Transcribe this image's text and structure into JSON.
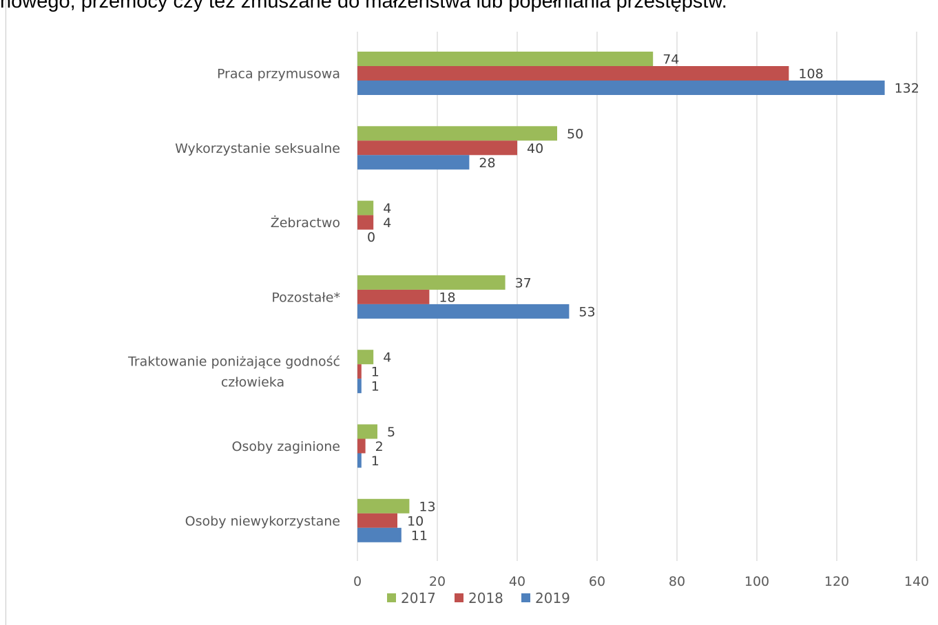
{
  "heading_fragment": "nowego, przemocy czy też zmuszane do małżeństwa lub popełniania przestępstw.",
  "chart_data": {
    "type": "bar",
    "orientation": "horizontal",
    "categories": [
      [
        "Praca przymusowa"
      ],
      [
        "Wykorzystanie seksualne"
      ],
      [
        "Żebractwo"
      ],
      [
        "Pozostałe*"
      ],
      [
        "Traktowanie poniżające godność",
        "człowieka"
      ],
      [
        "Osoby zaginione"
      ],
      [
        "Osoby niewykorzystane"
      ]
    ],
    "series": [
      {
        "name": "2017",
        "color": "#9BBB59",
        "values": [
          74,
          50,
          4,
          37,
          4,
          5,
          13
        ]
      },
      {
        "name": "2018",
        "color": "#C0504D",
        "values": [
          108,
          40,
          4,
          18,
          1,
          2,
          10
        ]
      },
      {
        "name": "2019",
        "color": "#4F81BD",
        "values": [
          132,
          28,
          0,
          53,
          1,
          1,
          11
        ]
      }
    ],
    "xlim": [
      0,
      140
    ],
    "x_ticks": [
      0,
      20,
      40,
      60,
      80,
      100,
      120,
      140
    ],
    "grid": true,
    "legend": "bottom",
    "data_labels": true
  }
}
